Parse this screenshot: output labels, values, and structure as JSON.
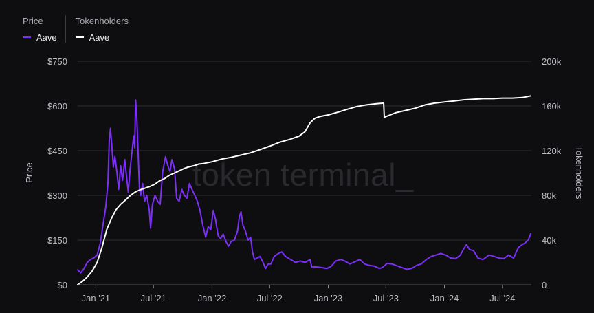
{
  "legend": {
    "price_title": "Price",
    "price_series": "Aave",
    "holders_title": "Tokenholders",
    "holders_series": "Aave"
  },
  "watermark": "token terminal_",
  "colors": {
    "price": "#7b2ff7",
    "holders": "#ffffff",
    "grid": "#2e2e33",
    "background": "#0e0e10"
  },
  "chart_data": {
    "type": "line",
    "x_axis": {
      "type": "time",
      "range": [
        "2020-11-05",
        "2024-09-30"
      ],
      "ticks": [
        {
          "date": "2021-01-01",
          "label": "Jan '21"
        },
        {
          "date": "2021-07-01",
          "label": "Jul '21"
        },
        {
          "date": "2022-01-01",
          "label": "Jan '22"
        },
        {
          "date": "2022-07-01",
          "label": "Jul '22"
        },
        {
          "date": "2023-01-01",
          "label": "Jan '23"
        },
        {
          "date": "2023-07-01",
          "label": "Jul '23"
        },
        {
          "date": "2024-01-01",
          "label": "Jan '24"
        },
        {
          "date": "2024-07-01",
          "label": "Jul '24"
        }
      ]
    },
    "y_left": {
      "label": "Price",
      "range": [
        0,
        750
      ],
      "ticks": [
        {
          "value": 0,
          "label": "$0"
        },
        {
          "value": 150,
          "label": "$150"
        },
        {
          "value": 300,
          "label": "$300"
        },
        {
          "value": 450,
          "label": "$450"
        },
        {
          "value": 600,
          "label": "$600"
        },
        {
          "value": 750,
          "label": "$750"
        }
      ]
    },
    "y_right": {
      "label": "Tokenholders",
      "range": [
        0,
        200000
      ],
      "ticks": [
        {
          "value": 0,
          "label": "0"
        },
        {
          "value": 40000,
          "label": "40k"
        },
        {
          "value": 80000,
          "label": "80k"
        },
        {
          "value": 120000,
          "label": "120k"
        },
        {
          "value": 160000,
          "label": "160k"
        },
        {
          "value": 200000,
          "label": "200k"
        }
      ]
    },
    "grid": true,
    "series": [
      {
        "name": "Aave",
        "axis": "left",
        "color": "#7b2ff7",
        "points": [
          [
            "2020-11-05",
            50
          ],
          [
            "2020-11-15",
            40
          ],
          [
            "2020-11-25",
            55
          ],
          [
            "2020-12-05",
            75
          ],
          [
            "2020-12-15",
            85
          ],
          [
            "2020-12-25",
            90
          ],
          [
            "2021-01-05",
            100
          ],
          [
            "2021-01-15",
            140
          ],
          [
            "2021-01-22",
            190
          ],
          [
            "2021-02-01",
            260
          ],
          [
            "2021-02-08",
            340
          ],
          [
            "2021-02-12",
            480
          ],
          [
            "2021-02-16",
            525
          ],
          [
            "2021-02-20",
            470
          ],
          [
            "2021-02-25",
            395
          ],
          [
            "2021-03-02",
            430
          ],
          [
            "2021-03-08",
            380
          ],
          [
            "2021-03-14",
            320
          ],
          [
            "2021-03-20",
            400
          ],
          [
            "2021-03-26",
            350
          ],
          [
            "2021-04-02",
            420
          ],
          [
            "2021-04-08",
            360
          ],
          [
            "2021-04-13",
            310
          ],
          [
            "2021-04-18",
            380
          ],
          [
            "2021-04-24",
            440
          ],
          [
            "2021-04-30",
            500
          ],
          [
            "2021-05-03",
            460
          ],
          [
            "2021-05-06",
            620
          ],
          [
            "2021-05-10",
            560
          ],
          [
            "2021-05-14",
            440
          ],
          [
            "2021-05-18",
            320
          ],
          [
            "2021-05-22",
            300
          ],
          [
            "2021-05-28",
            340
          ],
          [
            "2021-06-03",
            280
          ],
          [
            "2021-06-10",
            300
          ],
          [
            "2021-06-18",
            250
          ],
          [
            "2021-06-22",
            190
          ],
          [
            "2021-06-28",
            270
          ],
          [
            "2021-07-06",
            300
          ],
          [
            "2021-07-14",
            280
          ],
          [
            "2021-07-22",
            270
          ],
          [
            "2021-07-30",
            380
          ],
          [
            "2021-08-08",
            430
          ],
          [
            "2021-08-15",
            400
          ],
          [
            "2021-08-22",
            380
          ],
          [
            "2021-08-28",
            420
          ],
          [
            "2021-09-05",
            390
          ],
          [
            "2021-09-12",
            290
          ],
          [
            "2021-09-20",
            280
          ],
          [
            "2021-09-28",
            320
          ],
          [
            "2021-10-06",
            300
          ],
          [
            "2021-10-14",
            290
          ],
          [
            "2021-10-22",
            340
          ],
          [
            "2021-10-30",
            320
          ],
          [
            "2021-11-08",
            300
          ],
          [
            "2021-11-16",
            280
          ],
          [
            "2021-11-24",
            250
          ],
          [
            "2021-12-03",
            200
          ],
          [
            "2021-12-12",
            160
          ],
          [
            "2021-12-20",
            195
          ],
          [
            "2021-12-28",
            185
          ],
          [
            "2022-01-05",
            250
          ],
          [
            "2022-01-12",
            220
          ],
          [
            "2022-01-20",
            165
          ],
          [
            "2022-01-28",
            155
          ],
          [
            "2022-02-05",
            170
          ],
          [
            "2022-02-14",
            145
          ],
          [
            "2022-02-22",
            130
          ],
          [
            "2022-03-02",
            145
          ],
          [
            "2022-03-12",
            150
          ],
          [
            "2022-03-22",
            180
          ],
          [
            "2022-03-28",
            230
          ],
          [
            "2022-04-02",
            245
          ],
          [
            "2022-04-08",
            200
          ],
          [
            "2022-04-16",
            180
          ],
          [
            "2022-04-24",
            150
          ],
          [
            "2022-05-02",
            160
          ],
          [
            "2022-05-08",
            110
          ],
          [
            "2022-05-14",
            85
          ],
          [
            "2022-05-22",
            90
          ],
          [
            "2022-06-01",
            95
          ],
          [
            "2022-06-10",
            75
          ],
          [
            "2022-06-18",
            55
          ],
          [
            "2022-06-26",
            70
          ],
          [
            "2022-07-05",
            70
          ],
          [
            "2022-07-15",
            95
          ],
          [
            "2022-07-28",
            105
          ],
          [
            "2022-08-08",
            110
          ],
          [
            "2022-08-20",
            95
          ],
          [
            "2022-09-05",
            85
          ],
          [
            "2022-09-20",
            75
          ],
          [
            "2022-10-05",
            80
          ],
          [
            "2022-10-20",
            75
          ],
          [
            "2022-11-05",
            85
          ],
          [
            "2022-11-10",
            60
          ],
          [
            "2022-11-25",
            60
          ],
          [
            "2022-12-10",
            58
          ],
          [
            "2022-12-28",
            55
          ],
          [
            "2023-01-10",
            62
          ],
          [
            "2023-01-25",
            80
          ],
          [
            "2023-02-10",
            85
          ],
          [
            "2023-02-25",
            78
          ],
          [
            "2023-03-10",
            70
          ],
          [
            "2023-03-25",
            77
          ],
          [
            "2023-04-10",
            85
          ],
          [
            "2023-04-25",
            70
          ],
          [
            "2023-05-10",
            65
          ],
          [
            "2023-05-25",
            63
          ],
          [
            "2023-06-10",
            55
          ],
          [
            "2023-06-20",
            58
          ],
          [
            "2023-07-05",
            72
          ],
          [
            "2023-07-20",
            70
          ],
          [
            "2023-08-05",
            64
          ],
          [
            "2023-08-20",
            58
          ],
          [
            "2023-09-05",
            52
          ],
          [
            "2023-09-20",
            55
          ],
          [
            "2023-10-05",
            65
          ],
          [
            "2023-10-20",
            70
          ],
          [
            "2023-11-05",
            85
          ],
          [
            "2023-11-20",
            95
          ],
          [
            "2023-12-05",
            100
          ],
          [
            "2023-12-20",
            105
          ],
          [
            "2024-01-05",
            100
          ],
          [
            "2024-01-20",
            90
          ],
          [
            "2024-02-05",
            88
          ],
          [
            "2024-02-20",
            100
          ],
          [
            "2024-03-01",
            120
          ],
          [
            "2024-03-10",
            135
          ],
          [
            "2024-03-20",
            118
          ],
          [
            "2024-04-01",
            115
          ],
          [
            "2024-04-15",
            90
          ],
          [
            "2024-05-01",
            85
          ],
          [
            "2024-05-20",
            100
          ],
          [
            "2024-06-05",
            95
          ],
          [
            "2024-06-20",
            90
          ],
          [
            "2024-07-05",
            88
          ],
          [
            "2024-07-20",
            100
          ],
          [
            "2024-08-05",
            90
          ],
          [
            "2024-08-20",
            125
          ],
          [
            "2024-09-01",
            135
          ],
          [
            "2024-09-10",
            140
          ],
          [
            "2024-09-20",
            150
          ],
          [
            "2024-09-28",
            172
          ]
        ]
      },
      {
        "name": "Aave",
        "axis": "right",
        "color": "#ffffff",
        "points": [
          [
            "2020-11-05",
            0
          ],
          [
            "2020-11-20",
            3000
          ],
          [
            "2020-12-05",
            7000
          ],
          [
            "2020-12-20",
            12000
          ],
          [
            "2021-01-05",
            20000
          ],
          [
            "2021-01-20",
            33000
          ],
          [
            "2021-02-05",
            50000
          ],
          [
            "2021-02-20",
            60000
          ],
          [
            "2021-03-05",
            67000
          ],
          [
            "2021-03-20",
            72000
          ],
          [
            "2021-04-05",
            76000
          ],
          [
            "2021-04-20",
            80000
          ],
          [
            "2021-05-05",
            83000
          ],
          [
            "2021-05-20",
            85000
          ],
          [
            "2021-06-05",
            86500
          ],
          [
            "2021-06-20",
            88000
          ],
          [
            "2021-07-05",
            90000
          ],
          [
            "2021-07-20",
            93000
          ],
          [
            "2021-08-05",
            95000
          ],
          [
            "2021-08-20",
            98000
          ],
          [
            "2021-09-05",
            100000
          ],
          [
            "2021-09-20",
            102000
          ],
          [
            "2021-10-05",
            104000
          ],
          [
            "2021-10-20",
            105500
          ],
          [
            "2021-11-05",
            106500
          ],
          [
            "2021-11-20",
            108000
          ],
          [
            "2021-12-05",
            108500
          ],
          [
            "2022-01-01",
            110000
          ],
          [
            "2022-02-01",
            112500
          ],
          [
            "2022-03-01",
            114000
          ],
          [
            "2022-04-01",
            116000
          ],
          [
            "2022-05-01",
            118000
          ],
          [
            "2022-06-01",
            121000
          ],
          [
            "2022-07-01",
            124000
          ],
          [
            "2022-08-01",
            127500
          ],
          [
            "2022-09-01",
            130000
          ],
          [
            "2022-10-01",
            133000
          ],
          [
            "2022-10-20",
            137000
          ],
          [
            "2022-11-05",
            145000
          ],
          [
            "2022-11-20",
            149000
          ],
          [
            "2022-12-05",
            150500
          ],
          [
            "2023-01-01",
            152000
          ],
          [
            "2023-02-01",
            154500
          ],
          [
            "2023-03-01",
            157000
          ],
          [
            "2023-04-01",
            159500
          ],
          [
            "2023-05-01",
            161000
          ],
          [
            "2023-06-01",
            162000
          ],
          [
            "2023-06-24",
            162500
          ],
          [
            "2023-06-26",
            150000
          ],
          [
            "2023-07-10",
            151500
          ],
          [
            "2023-08-01",
            154000
          ],
          [
            "2023-09-01",
            156000
          ],
          [
            "2023-10-01",
            158000
          ],
          [
            "2023-11-01",
            161000
          ],
          [
            "2023-12-01",
            162500
          ],
          [
            "2024-01-01",
            163500
          ],
          [
            "2024-02-01",
            164500
          ],
          [
            "2024-03-01",
            165500
          ],
          [
            "2024-04-01",
            166000
          ],
          [
            "2024-05-01",
            166500
          ],
          [
            "2024-06-01",
            166500
          ],
          [
            "2024-07-01",
            167000
          ],
          [
            "2024-08-01",
            167000
          ],
          [
            "2024-09-01",
            167500
          ],
          [
            "2024-09-28",
            169000
          ]
        ]
      }
    ]
  }
}
